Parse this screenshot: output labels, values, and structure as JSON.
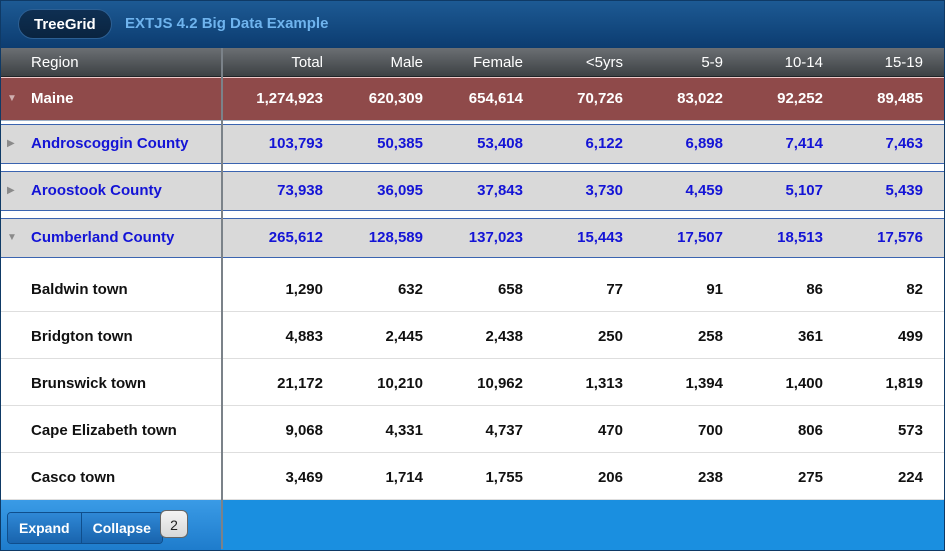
{
  "header": {
    "tab_label": "TreeGrid",
    "title": "EXTJS 4.2 Big Data Example"
  },
  "columns": [
    "Region",
    "Total",
    "Male",
    "Female",
    "<5yrs",
    "5-9",
    "10-14",
    "15-19"
  ],
  "rows": [
    {
      "type": "region",
      "expanded": true,
      "name": "Maine",
      "values": [
        "1,274,923",
        "620,309",
        "654,614",
        "70,726",
        "83,022",
        "92,252",
        "89,485"
      ]
    },
    {
      "type": "county",
      "expanded": false,
      "name": "Androscoggin County",
      "values": [
        "103,793",
        "50,385",
        "53,408",
        "6,122",
        "6,898",
        "7,414",
        "7,463"
      ]
    },
    {
      "type": "county",
      "expanded": false,
      "name": "Aroostook County",
      "values": [
        "73,938",
        "36,095",
        "37,843",
        "3,730",
        "4,459",
        "5,107",
        "5,439"
      ]
    },
    {
      "type": "county",
      "expanded": true,
      "name": "Cumberland County",
      "values": [
        "265,612",
        "128,589",
        "137,023",
        "15,443",
        "17,507",
        "18,513",
        "17,576"
      ]
    },
    {
      "type": "town",
      "name": "Baldwin town",
      "values": [
        "1,290",
        "632",
        "658",
        "77",
        "91",
        "86",
        "82"
      ]
    },
    {
      "type": "town",
      "name": "Bridgton town",
      "values": [
        "4,883",
        "2,445",
        "2,438",
        "250",
        "258",
        "361",
        "499"
      ]
    },
    {
      "type": "town",
      "name": "Brunswick town",
      "values": [
        "21,172",
        "10,210",
        "10,962",
        "1,313",
        "1,394",
        "1,400",
        "1,819"
      ]
    },
    {
      "type": "town",
      "name": "Cape Elizabeth town",
      "values": [
        "9,068",
        "4,331",
        "4,737",
        "470",
        "700",
        "806",
        "573"
      ]
    },
    {
      "type": "town",
      "name": "Casco town",
      "values": [
        "3,469",
        "1,714",
        "1,755",
        "206",
        "238",
        "275",
        "224"
      ]
    }
  ],
  "footer": {
    "expand_label": "Expand",
    "collapse_label": "Collapse",
    "page_number": "2"
  },
  "colors": {
    "header_bg": "#0c3c70",
    "region_row": "#8f4a4a",
    "county_row": "#d9d9d9",
    "county_text": "#1414d6",
    "footer_bg": "#1a8fe0"
  },
  "icons": {
    "expanded": "triangle-down-icon",
    "collapsed": "triangle-right-icon"
  }
}
